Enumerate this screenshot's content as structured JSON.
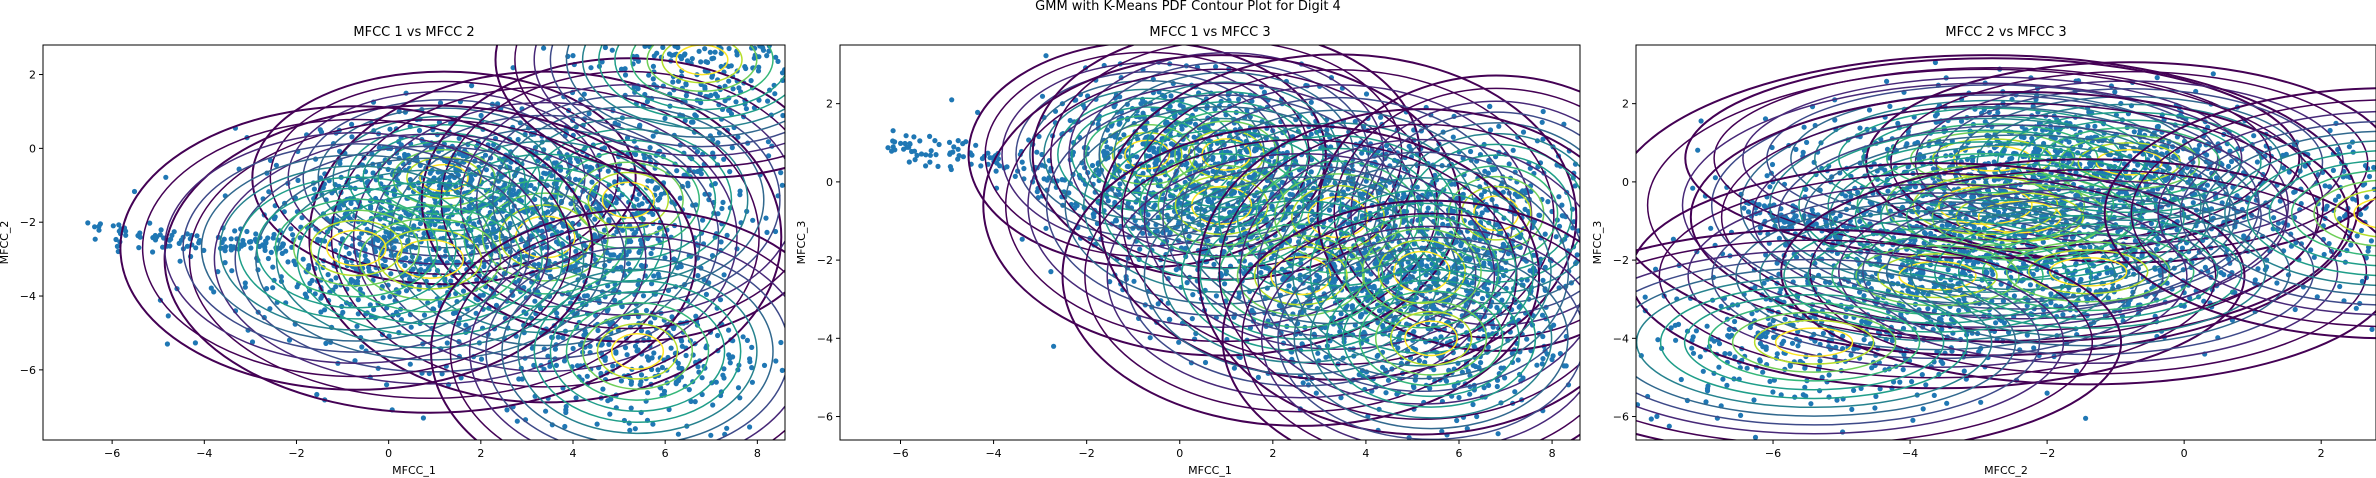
{
  "figure": {
    "suptitle": "GMM with K-Means PDF Contour Plot for Digit 4"
  },
  "style": {
    "point_color": "#1f77b4",
    "contour_colors": [
      "#440154",
      "#482878",
      "#3e4a89",
      "#31688e",
      "#26828e",
      "#1f9e89",
      "#35b779",
      "#6ece58",
      "#b5de2b",
      "#fde725"
    ]
  },
  "chart_data": [
    {
      "type": "scatter",
      "title": "MFCC 1 vs MFCC 2",
      "xlabel": "MFCC_1",
      "ylabel": "MFCC_2",
      "xlim": [
        -7.5,
        8.6
      ],
      "ylim": [
        -7.9,
        2.8
      ],
      "xticks": [
        -6,
        -4,
        -2,
        0,
        2,
        4,
        6,
        8
      ],
      "yticks": [
        -6,
        -4,
        -2,
        0,
        2
      ],
      "tick_labels_x": [
        "−6",
        "−4",
        "−2",
        "0",
        "2",
        "4",
        "6",
        "8"
      ],
      "tick_labels_y": [
        "−6",
        "−4",
        "−2",
        "0",
        "2"
      ],
      "components": [
        {
          "mean": [
            1.2,
            -0.8
          ],
          "sd": [
            1.3,
            0.9
          ],
          "rho": -0.1
        },
        {
          "mean": [
            3.4,
            -2.4
          ],
          "sd": [
            1.6,
            1.4
          ],
          "rho": 0.0
        },
        {
          "mean": [
            5.2,
            -1.4
          ],
          "sd": [
            1.4,
            1.2
          ],
          "rho": 0.1
        },
        {
          "mean": [
            0.9,
            -3.0
          ],
          "sd": [
            1.8,
            1.3
          ],
          "rho": 0.0
        },
        {
          "mean": [
            -0.7,
            -2.7
          ],
          "sd": [
            1.6,
            1.2
          ],
          "rho": 0.0
        },
        {
          "mean": [
            5.4,
            -5.5
          ],
          "sd": [
            1.4,
            1.2
          ],
          "rho": 0.0
        },
        {
          "mean": [
            6.8,
            2.4
          ],
          "sd": [
            1.4,
            1.0
          ],
          "rho": 0.0
        }
      ],
      "tail": {
        "from": [
          -6.4,
          -2.3
        ],
        "to": [
          -2.0,
          -2.7
        ]
      },
      "outliers": [
        [
          -4.8,
          -5.3
        ],
        [
          1.8,
          1.7
        ],
        [
          2.7,
          -7.0
        ],
        [
          -0.4,
          -6.2
        ],
        [
          1.3,
          -6.4
        ],
        [
          3.8,
          1.4
        ],
        [
          7.2,
          -4.1
        ]
      ]
    },
    {
      "type": "scatter",
      "title": "MFCC 1 vs MFCC 3",
      "xlabel": "MFCC_1",
      "ylabel": "MFCC_3",
      "xlim": [
        -7.3,
        8.6
      ],
      "ylim": [
        -6.6,
        3.5
      ],
      "xticks": [
        -6,
        -4,
        -2,
        0,
        2,
        4,
        6,
        8
      ],
      "yticks": [
        -6,
        -4,
        -2,
        0,
        2
      ],
      "tick_labels_x": [
        "−6",
        "−4",
        "−2",
        "0",
        "2",
        "4",
        "6",
        "8"
      ],
      "tick_labels_y": [
        "−6",
        "−4",
        "−2",
        "0",
        "2"
      ],
      "components": [
        {
          "mean": [
            -0.7,
            0.7
          ],
          "sd": [
            1.2,
            0.9
          ],
          "rho": 0.0
        },
        {
          "mean": [
            1.0,
            0.7
          ],
          "sd": [
            1.3,
            1.0
          ],
          "rho": 0.0
        },
        {
          "mean": [
            0.9,
            -0.6
          ],
          "sd": [
            1.6,
            1.2
          ],
          "rho": 0.0
        },
        {
          "mean": [
            3.4,
            -0.9
          ],
          "sd": [
            1.6,
            1.3
          ],
          "rho": 0.0
        },
        {
          "mean": [
            6.8,
            -0.8
          ],
          "sd": [
            1.2,
            1.1
          ],
          "rho": 0.0
        },
        {
          "mean": [
            2.6,
            -2.4
          ],
          "sd": [
            1.6,
            1.2
          ],
          "rho": 0.0
        },
        {
          "mean": [
            5.2,
            -2.3
          ],
          "sd": [
            1.5,
            1.3
          ],
          "rho": 0.0
        },
        {
          "mean": [
            5.4,
            -4.0
          ],
          "sd": [
            1.4,
            1.1
          ],
          "rho": 0.0
        }
      ],
      "tail": {
        "from": [
          -6.3,
          1.0
        ],
        "to": [
          -2.5,
          0.2
        ]
      },
      "outliers": [
        [
          -4.9,
          2.1
        ],
        [
          -0.6,
          -3.2
        ],
        [
          6.5,
          -5.5
        ],
        [
          1.5,
          -2.8
        ],
        [
          7.5,
          -3.0
        ]
      ]
    },
    {
      "type": "scatter",
      "title": "MFCC 2 vs MFCC 3",
      "xlabel": "MFCC_2",
      "ylabel": "MFCC_3",
      "xlim": [
        -8.0,
        2.8
      ],
      "ylim": [
        -6.6,
        3.5
      ],
      "xticks": [
        -6,
        -4,
        -2,
        0,
        2
      ],
      "yticks": [
        -6,
        -4,
        -2,
        0,
        2
      ],
      "tick_labels_x": [
        "−6",
        "−4",
        "−2",
        "0",
        "2"
      ],
      "tick_labels_y": [
        "−6",
        "−4",
        "−2",
        "0",
        "2"
      ],
      "components": [
        {
          "mean": [
            -2.8,
            0.6
          ],
          "sd": [
            1.4,
            0.8
          ],
          "rho": 0.0
        },
        {
          "mean": [
            -0.8,
            0.5
          ],
          "sd": [
            1.2,
            0.8
          ],
          "rho": 0.0
        },
        {
          "mean": [
            -2.9,
            -0.6
          ],
          "sd": [
            1.7,
            1.2
          ],
          "rho": 0.0
        },
        {
          "mean": [
            -2.4,
            -0.9
          ],
          "sd": [
            1.5,
            1.0
          ],
          "rho": 0.0
        },
        {
          "mean": [
            -3.6,
            -2.4
          ],
          "sd": [
            1.4,
            0.9
          ],
          "rho": 0.0
        },
        {
          "mean": [
            -1.4,
            -2.3
          ],
          "sd": [
            1.4,
            0.9
          ],
          "rho": 0.0
        },
        {
          "mean": [
            -5.4,
            -4.1
          ],
          "sd": [
            1.4,
            0.9
          ],
          "rho": 0.0
        },
        {
          "mean": [
            3.0,
            -0.8
          ],
          "sd": [
            1.3,
            1.0
          ],
          "rho": 0.0
        }
      ],
      "tail": {
        "from": [
          -6.3,
          -0.7
        ],
        "to": [
          -5.0,
          -1.3
        ]
      },
      "outliers": [
        [
          -5.1,
          2.1
        ],
        [
          -5.3,
          1.0
        ],
        [
          -5.4,
          0.5
        ],
        [
          -6.0,
          -0.9
        ],
        [
          -2.0,
          -5.4
        ],
        [
          0.3,
          -4.4
        ],
        [
          -4.1,
          -4.8
        ]
      ]
    }
  ]
}
